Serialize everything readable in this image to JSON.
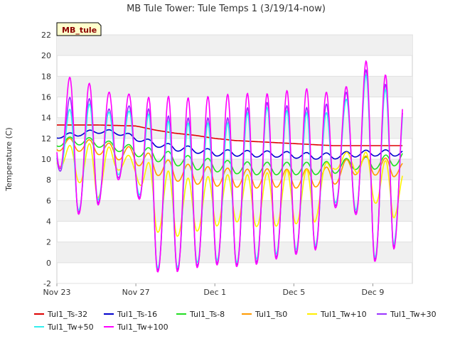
{
  "chart_data": {
    "type": "line",
    "title": "MB Tule Tower: Tule Temps 1 (3/19/14-now)",
    "badge": "MB_tule",
    "ylabel": "Temperature (C)",
    "xlabel": "",
    "ylim": [
      -2,
      22
    ],
    "xlim": [
      0,
      18
    ],
    "grid": "horizontal bands",
    "yticks": [
      -2,
      0,
      2,
      4,
      6,
      8,
      10,
      12,
      14,
      16,
      18,
      20,
      22
    ],
    "xticks": [
      {
        "label": "Nov 23",
        "day": 0
      },
      {
        "label": "Nov 27",
        "day": 4
      },
      {
        "label": "Dec 1",
        "day": 8
      },
      {
        "label": "Dec 5",
        "day": 12
      },
      {
        "label": "Dec 9",
        "day": 16
      }
    ],
    "colors": {
      "Tul1_Ts-32": "#dd0000",
      "Tul1_Ts-16": "#0000cc",
      "Tul1_Ts-8": "#22dd22",
      "Tul1_Ts0": "#ff9900",
      "Tul1_Tw+10": "#ffee00",
      "Tul1_Tw+30": "#9933ff",
      "Tul1_Tw+50": "#33eeee",
      "Tul1_Tw+100": "#ff00ff"
    },
    "legend": [
      "Tul1_Ts-32",
      "Tul1_Ts-16",
      "Tul1_Ts-8",
      "Tul1_Ts0",
      "Tul1_Tw+10",
      "Tul1_Tw+30",
      "Tul1_Tw+50",
      "Tul1_Tw+100"
    ],
    "series": [
      {
        "name": "Tul1_Ts-32",
        "x": [
          0,
          2,
          4,
          4.5,
          5,
          6,
          7,
          8,
          9,
          10,
          11,
          12,
          13,
          14,
          15,
          16,
          17,
          17.5
        ],
        "values": [
          13.3,
          13.3,
          13.2,
          13.0,
          12.8,
          12.5,
          12.3,
          12.0,
          11.8,
          11.7,
          11.6,
          11.5,
          11.4,
          11.3,
          11.3,
          11.3,
          11.3,
          11.3
        ]
      },
      {
        "name": "Tul1_Ts-16",
        "x": [
          0,
          1,
          2,
          3,
          4,
          4.5,
          5,
          6,
          7,
          8,
          9,
          10,
          11,
          12,
          13,
          14,
          15,
          16,
          17,
          17.5
        ],
        "daily": {
          "min": [
            12.0,
            12.2,
            12.5,
            12.4,
            11.8,
            11.5,
            11.2,
            10.8,
            10.6,
            10.3,
            10.3,
            10.2,
            10.2,
            10.1,
            10.0,
            10.0,
            10.2,
            10.3,
            10.3,
            10.3
          ],
          "amp": [
            0.4,
            0.4,
            0.4,
            0.4,
            0.5,
            0.5,
            0.5,
            0.6,
            0.6,
            0.6,
            0.6,
            0.6,
            0.6,
            0.6,
            0.6,
            0.6,
            0.6,
            0.6,
            0.6,
            0.6
          ]
        }
      },
      {
        "name": "Tul1_Ts-8",
        "x": [
          0,
          1,
          2,
          3,
          4,
          5,
          6,
          7,
          8,
          9,
          10,
          11,
          12,
          13,
          14,
          15,
          16,
          17,
          17.5
        ],
        "daily": {
          "min": [
            11.2,
            11.4,
            11.2,
            10.8,
            10.3,
            9.8,
            9.4,
            9.0,
            8.8,
            8.6,
            8.5,
            8.5,
            8.5,
            8.5,
            8.6,
            9.0,
            9.0,
            9.3,
            9.6
          ],
          "amp": [
            0.8,
            0.8,
            0.8,
            0.8,
            1.0,
            1.2,
            1.2,
            1.2,
            1.2,
            1.2,
            1.2,
            1.2,
            1.2,
            1.2,
            1.2,
            1.2,
            1.2,
            1.2,
            1.2
          ]
        }
      },
      {
        "name": "Tul1_Ts0",
        "x": [
          0,
          1,
          2,
          3,
          4,
          5,
          6,
          7,
          8,
          9,
          10,
          11,
          12,
          13,
          14,
          15,
          16,
          17,
          17.5
        ],
        "daily": {
          "min": [
            10.8,
            10.8,
            10.5,
            10.0,
            9.5,
            8.5,
            7.9,
            7.6,
            7.4,
            7.3,
            7.2,
            7.3,
            7.2,
            7.3,
            7.5,
            8.5,
            8.5,
            8.2,
            8.8
          ],
          "amp": [
            1.2,
            1.2,
            1.3,
            1.4,
            1.6,
            1.8,
            1.8,
            1.8,
            1.8,
            1.8,
            1.8,
            1.8,
            1.8,
            1.8,
            1.8,
            1.8,
            1.8,
            1.8,
            1.0
          ]
        }
      },
      {
        "name": "Tul1_Tw+10",
        "x": [
          0,
          1,
          2,
          3,
          4,
          5,
          6,
          7,
          8,
          9,
          10,
          11,
          12,
          13,
          14,
          15,
          16,
          17,
          17.5
        ],
        "daily": {
          "min": [
            9.5,
            8.0,
            6.0,
            9.0,
            8.5,
            3.0,
            2.5,
            3.0,
            3.5,
            4.0,
            3.5,
            3.5,
            3.8,
            3.5,
            9.0,
            9.2,
            6.0,
            4.0,
            6.0
          ],
          "max": [
            11.0,
            11.5,
            11.5,
            11.0,
            10.0,
            9.5,
            8.5,
            8.0,
            8.5,
            8.5,
            8.5,
            8.8,
            9.0,
            9.0,
            10.0,
            11.0,
            10.5,
            9.5,
            9.0
          ]
        }
      },
      {
        "name": "Tul1_Tw+30",
        "x": [
          0,
          1,
          2,
          3,
          4,
          5,
          6,
          7,
          8,
          9,
          10,
          11,
          12,
          13,
          14,
          15,
          16,
          17,
          17.5
        ],
        "daily": {
          "min": [
            9.5,
            4.8,
            5.5,
            8.3,
            7.5,
            -0.7,
            -0.7,
            -0.3,
            0.0,
            -0.2,
            0.0,
            0.5,
            1.0,
            1.0,
            5.5,
            5.5,
            0.3,
            0.5,
            6.5
          ],
          "max": [
            15.0,
            16.5,
            15.5,
            14.5,
            15.5,
            14.5,
            14.0,
            14.0,
            14.0,
            14.0,
            15.5,
            15.5,
            15.0,
            15.0,
            15.5,
            17.0,
            19.5,
            16.0,
            16.5
          ]
        }
      },
      {
        "name": "Tul1_Tw+50",
        "x": [
          0,
          1,
          2,
          3,
          4,
          5,
          6,
          7,
          8,
          9,
          10,
          11,
          12,
          13,
          14,
          15,
          16,
          17,
          17.5
        ],
        "daily": {
          "min": [
            9.8,
            5.0,
            5.8,
            8.6,
            7.8,
            -0.5,
            -0.5,
            0.0,
            0.3,
            0.0,
            0.3,
            0.8,
            1.3,
            1.2,
            5.8,
            5.8,
            0.5,
            0.8,
            6.8
          ],
          "max": [
            14.5,
            15.0,
            15.5,
            14.0,
            15.0,
            14.0,
            13.5,
            13.5,
            13.5,
            13.5,
            15.0,
            15.0,
            14.5,
            14.5,
            14.5,
            16.5,
            19.0,
            15.5,
            16.0
          ]
        }
      },
      {
        "name": "Tul1_Tw+100",
        "x": [
          0,
          1,
          2,
          3,
          4,
          5,
          6,
          7,
          8,
          9,
          10,
          11,
          12,
          13,
          14,
          15,
          16,
          17,
          17.5
        ],
        "daily": {
          "min": [
            9.8,
            4.6,
            5.3,
            8.1,
            7.3,
            -0.9,
            -0.9,
            -0.5,
            -0.2,
            -0.4,
            -0.2,
            0.3,
            0.8,
            0.8,
            5.3,
            5.3,
            0.1,
            0.3,
            6.3
          ],
          "max": [
            17.2,
            18.3,
            16.8,
            16.3,
            16.3,
            15.8,
            16.2,
            15.8,
            16.2,
            16.3,
            16.4,
            16.3,
            16.8,
            16.8,
            16.3,
            17.4,
            20.6,
            16.8,
            17.0
          ]
        }
      }
    ]
  }
}
